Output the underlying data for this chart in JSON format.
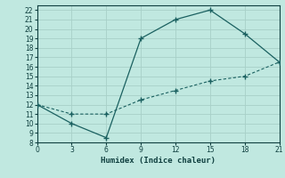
{
  "xlabel": "Humidex (Indice chaleur)",
  "ylabel": "",
  "bg_color": "#c0e8e0",
  "grid_color": "#a8d0c8",
  "line_color": "#1a6060",
  "x_upper": [
    0,
    3,
    6,
    9,
    12,
    15,
    18,
    21
  ],
  "y_upper": [
    12,
    10,
    8.5,
    19,
    21,
    22,
    19.5,
    16.5
  ],
  "x_lower": [
    0,
    3,
    6,
    9,
    12,
    15,
    18,
    21
  ],
  "y_lower": [
    12,
    11,
    11,
    12.5,
    13.5,
    14.5,
    15.0,
    16.5
  ],
  "xlim": [
    0,
    21
  ],
  "ylim": [
    8,
    22.5
  ],
  "xticks": [
    0,
    3,
    6,
    9,
    12,
    15,
    18,
    21
  ],
  "yticks": [
    8,
    9,
    10,
    11,
    12,
    13,
    14,
    15,
    16,
    17,
    18,
    19,
    20,
    21,
    22
  ],
  "tick_fontsize": 5.5,
  "xlabel_fontsize": 6.5
}
